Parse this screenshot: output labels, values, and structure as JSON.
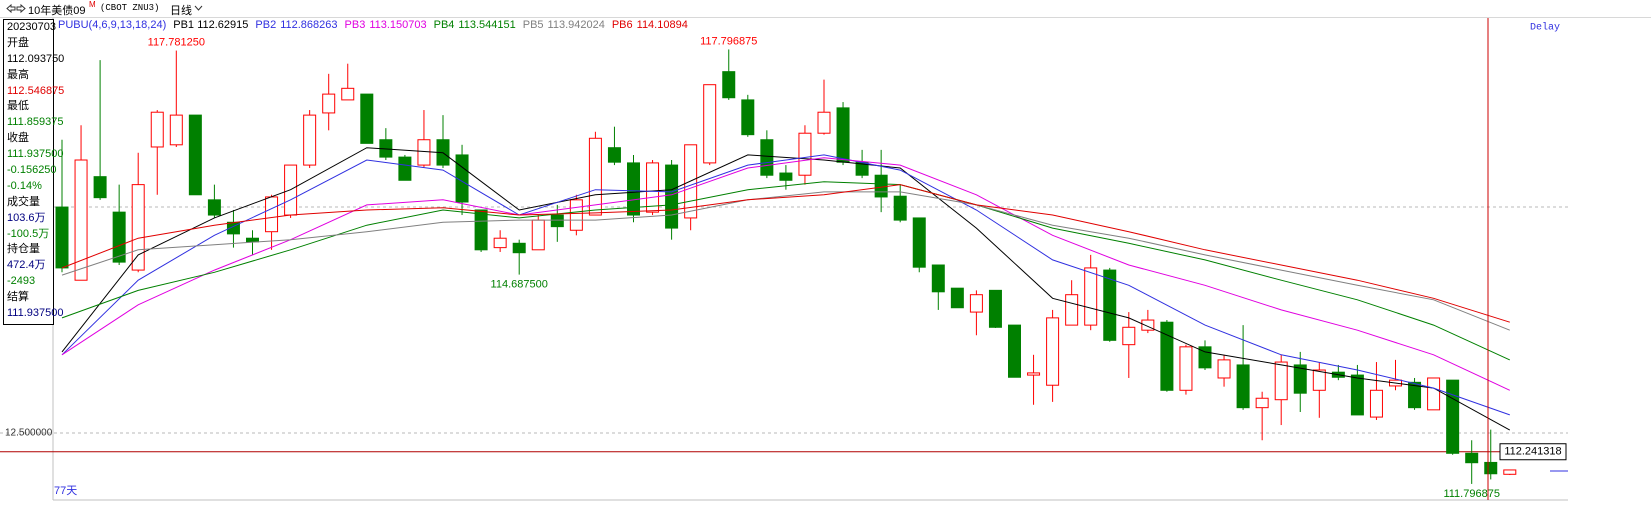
{
  "header": {
    "title": "10年美债09",
    "badge": "M",
    "symbol": "(CBOT ZNU3)",
    "period": "日线"
  },
  "info_panel": {
    "lines": [
      {
        "text": "20230703",
        "color": "#000000"
      },
      {
        "text": "开盘",
        "color": "#000000"
      },
      {
        "text": "112.093750",
        "color": "#000000"
      },
      {
        "text": "最高",
        "color": "#000000"
      },
      {
        "text": "112.546875",
        "color": "#e00000"
      },
      {
        "text": "最低",
        "color": "#000000"
      },
      {
        "text": "111.859375",
        "color": "#008000"
      },
      {
        "text": "收盘",
        "color": "#000000"
      },
      {
        "text": "111.937500",
        "color": "#008000"
      },
      {
        "text": "-0.156250",
        "color": "#008000"
      },
      {
        "text": "-0.14%",
        "color": "#008000"
      },
      {
        "text": "成交量",
        "color": "#000000"
      },
      {
        "text": "103.6万",
        "color": "#000080"
      },
      {
        "text": "-100.5万",
        "color": "#008000"
      },
      {
        "text": "持仓量",
        "color": "#000000"
      },
      {
        "text": "472.4万",
        "color": "#000080"
      },
      {
        "text": "-2493",
        "color": "#008000"
      },
      {
        "text": "结算",
        "color": "#000000"
      },
      {
        "text": "111.937500",
        "color": "#000080"
      }
    ]
  },
  "chart_data": {
    "type": "candlestick",
    "indicator": "PUBU(4,6,9,13,18,24)",
    "indicator_color": "#3030e0",
    "delay_label": "Delay",
    "bar_count_label": "77天",
    "ylim": [
      111.575,
      118.231
    ],
    "yticks": [
      {
        "value": 112.5,
        "label": "12.500000"
      }
    ],
    "last_price": 112.241318,
    "last_price_color": "#b00000",
    "candles": {
      "up_color": "#ff0000",
      "down_color": "#008000",
      "open": [
        115.62,
        114.61,
        116.04,
        115.55,
        114.75,
        116.45,
        116.48,
        116.89,
        115.72,
        115.41,
        115.19,
        115.28,
        115.51,
        116.2,
        116.92,
        117.1,
        117.18,
        116.55,
        116.31,
        116.2,
        116.55,
        116.34,
        115.58,
        115.06,
        115.12,
        115.03,
        115.51,
        115.3,
        115.51,
        116.44,
        116.23,
        115.55,
        116.2,
        115.47,
        116.23,
        117.49,
        117.1,
        116.55,
        116.09,
        116.06,
        116.64,
        116.99,
        116.24,
        116.06,
        115.77,
        115.47,
        114.82,
        114.5,
        114.17,
        114.47,
        113.99,
        113.3,
        113.16,
        113.99,
        113.99,
        114.75,
        113.72,
        113.92,
        114.03,
        113.09,
        113.69,
        113.26,
        113.44,
        112.85,
        112.96,
        113.44,
        113.09,
        113.34,
        113.3,
        112.72,
        113.15,
        113.2,
        112.82,
        113.23,
        112.22,
        112.09375,
        111.93
      ],
      "high": [
        116.55,
        116.75,
        117.65,
        115.93,
        116.37,
        116.96,
        117.78125,
        116.89,
        115.93,
        115.58,
        115.3,
        115.79,
        116.2,
        116.96,
        117.46,
        117.6,
        117.18,
        116.71,
        116.34,
        116.96,
        116.89,
        116.48,
        115.58,
        115.3,
        115.17,
        115.51,
        115.65,
        115.79,
        116.66,
        116.73,
        116.34,
        116.27,
        116.27,
        116.48,
        117.31,
        117.796875,
        117.17,
        116.68,
        116.2,
        116.75,
        117.38,
        117.07,
        116.41,
        116.41,
        115.93,
        115.47,
        114.82,
        114.5,
        114.47,
        114.47,
        113.99,
        113.58,
        114.2,
        114.61,
        114.96,
        114.78,
        114.17,
        114.2,
        114.06,
        113.72,
        113.78,
        113.58,
        113.99,
        113.07,
        113.58,
        113.62,
        113.48,
        113.44,
        113.44,
        113.48,
        113.51,
        113.26,
        113.26,
        113.23,
        112.4,
        112.546875,
        111.99
      ],
      "low": [
        114.72,
        114.61,
        115.72,
        114.82,
        114.72,
        115.79,
        116.45,
        115.79,
        115.47,
        115.06,
        114.96,
        115.03,
        115.47,
        116.16,
        116.68,
        117.1,
        116.5,
        116.27,
        115.99,
        116.17,
        116.16,
        115.51,
        115.0,
        115.0,
        114.6875,
        115.03,
        115.14,
        115.23,
        115.51,
        116.2,
        115.41,
        115.51,
        115.17,
        115.3,
        116.2,
        117.1,
        116.59,
        116.02,
        115.86,
        115.93,
        116.62,
        116.2,
        116.02,
        115.55,
        115.41,
        114.72,
        114.2,
        114.23,
        113.85,
        113.95,
        113.27,
        112.89,
        112.93,
        113.99,
        113.92,
        113.76,
        113.26,
        113.88,
        113.07,
        113.03,
        113.37,
        113.14,
        112.82,
        112.4,
        112.61,
        112.79,
        112.71,
        113.23,
        112.75,
        112.68,
        113.09,
        112.82,
        112.82,
        112.2,
        111.796875,
        111.859375,
        111.92
      ],
      "close": [
        114.78,
        116.27,
        115.75,
        114.86,
        115.93,
        116.93,
        116.89,
        115.79,
        115.51,
        115.25,
        115.14,
        115.76,
        116.2,
        116.89,
        117.18,
        117.26,
        116.5,
        116.31,
        115.99,
        116.55,
        116.2,
        115.69,
        115.03,
        115.19,
        114.99,
        115.44,
        115.35,
        115.72,
        116.57,
        116.24,
        115.51,
        116.23,
        115.33,
        116.48,
        117.31,
        117.13,
        116.62,
        116.06,
        115.99,
        116.64,
        116.93,
        116.24,
        116.06,
        115.76,
        115.44,
        114.79,
        114.45,
        114.23,
        114.41,
        113.96,
        113.27,
        113.33,
        114.09,
        114.41,
        114.78,
        113.78,
        113.96,
        114.06,
        113.09,
        113.69,
        113.4,
        113.51,
        112.85,
        112.98,
        113.48,
        113.05,
        113.37,
        113.27,
        112.75,
        113.09,
        113.23,
        112.85,
        113.26,
        112.22,
        112.09,
        111.9375,
        111.99
      ],
      "high_labels": [
        null,
        null,
        null,
        null,
        null,
        null,
        "117.781250",
        null,
        null,
        null,
        null,
        null,
        null,
        null,
        null,
        null,
        null,
        null,
        null,
        null,
        null,
        null,
        null,
        null,
        null,
        null,
        null,
        null,
        null,
        null,
        null,
        null,
        null,
        null,
        null,
        "117.796875",
        null,
        null,
        null,
        null,
        null,
        null,
        null,
        null,
        null,
        null,
        null,
        null,
        null,
        null,
        null,
        null,
        null,
        null,
        null,
        null,
        null,
        null,
        null,
        null,
        null,
        null,
        null,
        null,
        null,
        null,
        null,
        null,
        null,
        null,
        null,
        null,
        null,
        null,
        null,
        null,
        null
      ],
      "low_labels": [
        null,
        null,
        null,
        null,
        null,
        null,
        null,
        null,
        null,
        null,
        null,
        null,
        null,
        null,
        null,
        null,
        null,
        null,
        null,
        null,
        null,
        null,
        null,
        null,
        "114.687500",
        null,
        null,
        null,
        null,
        null,
        null,
        null,
        null,
        null,
        null,
        null,
        null,
        null,
        null,
        null,
        null,
        null,
        null,
        null,
        null,
        null,
        null,
        null,
        null,
        null,
        null,
        null,
        null,
        null,
        null,
        null,
        null,
        null,
        null,
        null,
        null,
        null,
        null,
        null,
        null,
        null,
        null,
        null,
        null,
        null,
        null,
        null,
        null,
        null,
        "111.796875",
        null,
        null
      ]
    },
    "series": [
      {
        "name": "PB1",
        "last": 112.62915,
        "color": "#000000",
        "x": [
          1,
          5,
          9,
          13,
          17,
          21,
          25,
          29,
          33,
          37,
          41,
          45,
          49,
          53,
          57,
          61,
          65,
          69,
          73,
          77
        ],
        "values": [
          113.62,
          114.96,
          115.47,
          115.86,
          116.44,
          116.37,
          115.58,
          115.79,
          115.86,
          116.34,
          116.27,
          116.16,
          115.33,
          114.36,
          114.09,
          113.62,
          113.44,
          113.26,
          113.12,
          112.54
        ]
      },
      {
        "name": "PB2",
        "last": 112.868263,
        "color": "#3030e0",
        "x": [
          1,
          5,
          9,
          13,
          17,
          21,
          25,
          29,
          33,
          37,
          41,
          45,
          49,
          53,
          57,
          61,
          65,
          69,
          73,
          77
        ],
        "values": [
          113.58,
          114.61,
          115.23,
          115.72,
          116.27,
          116.13,
          115.51,
          115.86,
          115.83,
          116.2,
          116.34,
          116.13,
          115.58,
          114.89,
          114.54,
          113.99,
          113.58,
          113.37,
          113.12,
          112.75
        ]
      },
      {
        "name": "PB3",
        "last": 113.150703,
        "color": "#e000e0",
        "x": [
          1,
          5,
          9,
          13,
          17,
          21,
          25,
          29,
          33,
          37,
          41,
          45,
          49,
          53,
          57,
          61,
          65,
          69,
          73,
          77
        ],
        "values": [
          113.58,
          114.27,
          114.75,
          115.17,
          115.65,
          115.72,
          115.51,
          115.65,
          115.79,
          116.16,
          116.3,
          116.2,
          115.79,
          115.23,
          114.82,
          114.54,
          114.2,
          113.92,
          113.58,
          113.09
        ]
      },
      {
        "name": "PB4",
        "last": 113.544151,
        "color": "#008000",
        "x": [
          1,
          5,
          9,
          13,
          17,
          21,
          25,
          29,
          33,
          37,
          41,
          45,
          49,
          53,
          57,
          61,
          65,
          69,
          73,
          77
        ],
        "values": [
          114.09,
          114.47,
          114.72,
          115.03,
          115.37,
          115.58,
          115.47,
          115.58,
          115.65,
          115.86,
          115.97,
          115.93,
          115.65,
          115.33,
          115.12,
          114.89,
          114.61,
          114.34,
          113.99,
          113.51
        ]
      },
      {
        "name": "PB5",
        "last": 113.942024,
        "color": "#808080",
        "x": [
          1,
          5,
          9,
          13,
          17,
          21,
          25,
          29,
          33,
          37,
          41,
          45,
          49,
          53,
          57,
          61,
          65,
          69,
          73,
          77
        ],
        "values": [
          114.68,
          115.03,
          115.1,
          115.17,
          115.28,
          115.41,
          115.44,
          115.44,
          115.51,
          115.72,
          115.83,
          115.83,
          115.65,
          115.37,
          115.19,
          114.96,
          114.75,
          114.54,
          114.34,
          113.92
        ]
      },
      {
        "name": "PB6",
        "last": 114.10894,
        "color": "#e00000",
        "x": [
          1,
          5,
          9,
          13,
          17,
          21,
          25,
          29,
          33,
          37,
          41,
          45,
          49,
          53,
          57,
          61,
          65,
          69,
          73,
          77
        ],
        "values": [
          114.78,
          115.19,
          115.37,
          115.51,
          115.58,
          115.61,
          115.51,
          115.54,
          115.58,
          115.72,
          115.79,
          115.93,
          115.65,
          115.51,
          115.28,
          115.03,
          114.82,
          114.61,
          114.36,
          114.03
        ]
      }
    ]
  }
}
